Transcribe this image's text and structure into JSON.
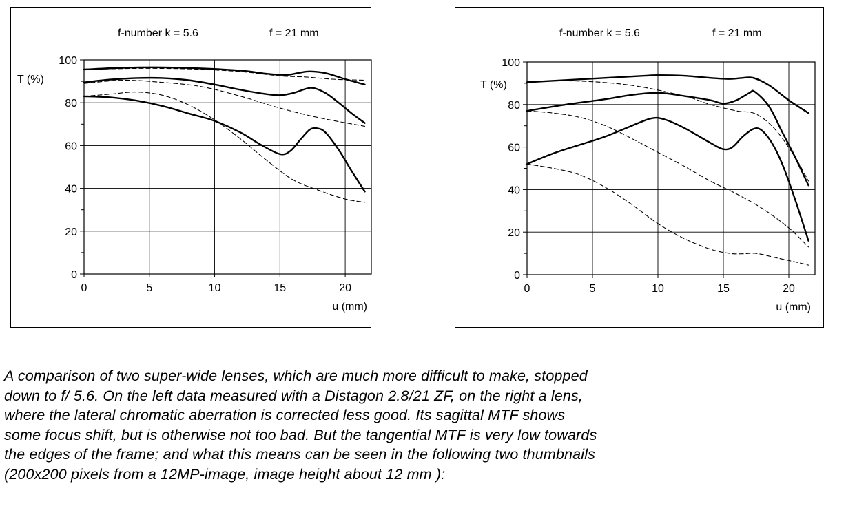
{
  "chart_data": [
    {
      "type": "line",
      "title_fnumber": "f-number  k = 5.6",
      "title_focal": "f = 21 mm",
      "ylabel": "T (%)",
      "xlabel": "u (mm)",
      "xlim": [
        0,
        22
      ],
      "ylim": [
        0,
        100
      ],
      "xticks": [
        0,
        5,
        10,
        15,
        20
      ],
      "yticks": [
        0,
        20,
        40,
        60,
        80,
        100
      ],
      "tick_labels_x": [
        "0",
        "5",
        "10",
        "15",
        "20"
      ],
      "tick_labels_y": [
        "0",
        "20",
        "40",
        "60",
        "80",
        "100"
      ],
      "grid": true,
      "series": [
        {
          "name": "solid-top",
          "style": "solid",
          "points": [
            [
              0,
              95.5
            ],
            [
              3,
              96.3
            ],
            [
              6,
              96.5
            ],
            [
              9,
              96
            ],
            [
              12,
              95
            ],
            [
              14,
              93.5
            ],
            [
              15.5,
              93
            ],
            [
              16.5,
              94
            ],
            [
              17.3,
              94.6
            ],
            [
              18.5,
              93.8
            ],
            [
              20,
              91
            ],
            [
              21.5,
              88.5
            ]
          ]
        },
        {
          "name": "dashed-top",
          "style": "dashed",
          "points": [
            [
              0,
              95.5
            ],
            [
              4,
              96
            ],
            [
              8,
              95.8
            ],
            [
              12,
              94.5
            ],
            [
              15,
              92.5
            ],
            [
              17,
              92
            ],
            [
              19,
              91
            ],
            [
              21.5,
              90.5
            ]
          ]
        },
        {
          "name": "solid-mid",
          "style": "solid",
          "points": [
            [
              0,
              89.5
            ],
            [
              2,
              90.8
            ],
            [
              4,
              91.5
            ],
            [
              6,
              91.5
            ],
            [
              8,
              90.5
            ],
            [
              10,
              88.5
            ],
            [
              12,
              86
            ],
            [
              14,
              84
            ],
            [
              15,
              83.5
            ],
            [
              16,
              84.5
            ],
            [
              17,
              86.5
            ],
            [
              17.6,
              86.8
            ],
            [
              18.5,
              84.5
            ],
            [
              19.5,
              80
            ],
            [
              20.5,
              75
            ],
            [
              21.5,
              70.5
            ]
          ]
        },
        {
          "name": "dashed-mid",
          "style": "dashed",
          "points": [
            [
              0,
              83
            ],
            [
              2,
              84
            ],
            [
              4,
              85
            ],
            [
              6,
              83.5
            ],
            [
              8,
              79
            ],
            [
              10,
              72
            ],
            [
              12,
              63
            ],
            [
              14,
              53
            ],
            [
              16,
              44
            ],
            [
              18,
              39
            ],
            [
              20,
              35
            ],
            [
              21.5,
              33.5
            ]
          ]
        },
        {
          "name": "solid-low",
          "style": "solid",
          "points": [
            [
              0,
              83
            ],
            [
              2,
              82.5
            ],
            [
              4,
              81
            ],
            [
              6,
              78.5
            ],
            [
              8,
              75
            ],
            [
              10,
              71.5
            ],
            [
              12,
              66
            ],
            [
              13.5,
              60.5
            ],
            [
              15,
              56
            ],
            [
              15.8,
              57.5
            ],
            [
              16.6,
              63
            ],
            [
              17.3,
              67.5
            ],
            [
              17.9,
              68
            ],
            [
              18.5,
              66
            ],
            [
              19.5,
              58
            ],
            [
              20.5,
              48
            ],
            [
              21.5,
              38.5
            ]
          ]
        },
        {
          "name": "dashed-low",
          "style": "dashed",
          "points": [
            [
              0,
              89
            ],
            [
              3,
              90.5
            ],
            [
              6,
              89.5
            ],
            [
              9,
              87.5
            ],
            [
              12,
              83
            ],
            [
              15,
              77.5
            ],
            [
              18,
              73
            ],
            [
              21.5,
              69
            ]
          ]
        }
      ]
    },
    {
      "type": "line",
      "title_fnumber": "f-number  k = 5.6",
      "title_focal": "f = 21 mm",
      "ylabel": "T (%)",
      "xlabel": "u (mm)",
      "xlim": [
        0,
        22
      ],
      "ylim": [
        0,
        100
      ],
      "xticks": [
        0,
        5,
        10,
        15,
        20
      ],
      "yticks": [
        0,
        20,
        40,
        60,
        80,
        100
      ],
      "tick_labels_x": [
        "0",
        "5",
        "10",
        "15",
        "20"
      ],
      "tick_labels_y": [
        "0",
        "20",
        "40",
        "60",
        "80",
        "100"
      ],
      "grid": true,
      "series": [
        {
          "name": "solid-top",
          "style": "solid",
          "points": [
            [
              0,
              90.5
            ],
            [
              3,
              91.5
            ],
            [
              6,
              92.5
            ],
            [
              9,
              93.5
            ],
            [
              10,
              93.8
            ],
            [
              12,
              93.5
            ],
            [
              14,
              92.5
            ],
            [
              15.5,
              92
            ],
            [
              16.5,
              92.5
            ],
            [
              17.3,
              92.5
            ],
            [
              18.5,
              89
            ],
            [
              20,
              82
            ],
            [
              21.5,
              76
            ]
          ]
        },
        {
          "name": "solid-mid",
          "style": "solid",
          "points": [
            [
              0,
              77
            ],
            [
              3,
              80
            ],
            [
              6,
              82.5
            ],
            [
              8,
              84.5
            ],
            [
              10,
              85.5
            ],
            [
              12,
              84
            ],
            [
              14,
              82
            ],
            [
              15,
              80.5
            ],
            [
              16,
              82
            ],
            [
              17,
              85.5
            ],
            [
              17.4,
              86
            ],
            [
              18.5,
              79
            ],
            [
              19.5,
              67
            ],
            [
              20.5,
              55
            ],
            [
              21.5,
              42
            ]
          ]
        },
        {
          "name": "solid-low",
          "style": "solid",
          "points": [
            [
              0,
              52
            ],
            [
              2,
              57
            ],
            [
              4,
              61
            ],
            [
              6,
              65
            ],
            [
              8,
              70
            ],
            [
              9.5,
              73.5
            ],
            [
              10.5,
              73
            ],
            [
              12,
              69
            ],
            [
              14,
              62
            ],
            [
              15,
              59
            ],
            [
              15.7,
              60
            ],
            [
              16.5,
              65
            ],
            [
              17.3,
              68.5
            ],
            [
              17.9,
              68
            ],
            [
              18.7,
              62
            ],
            [
              19.5,
              52
            ],
            [
              20.5,
              35
            ],
            [
              21.5,
              16
            ]
          ]
        },
        {
          "name": "dashed-top",
          "style": "dashed",
          "points": [
            [
              0,
              91
            ],
            [
              4,
              91
            ],
            [
              8,
              89
            ],
            [
              12,
              84
            ],
            [
              14,
              80
            ],
            [
              16,
              77
            ],
            [
              17.5,
              75.5
            ],
            [
              19,
              68
            ],
            [
              20.5,
              55
            ],
            [
              21.5,
              44
            ]
          ]
        },
        {
          "name": "dashed-mid",
          "style": "dashed",
          "points": [
            [
              0,
              77
            ],
            [
              2,
              76
            ],
            [
              4,
              74
            ],
            [
              6,
              70
            ],
            [
              8,
              64
            ],
            [
              10,
              57.5
            ],
            [
              12,
              51
            ],
            [
              14,
              44
            ],
            [
              16,
              38
            ],
            [
              18,
              31
            ],
            [
              20,
              22
            ],
            [
              21.5,
              13
            ]
          ]
        },
        {
          "name": "dashed-low",
          "style": "dashed",
          "points": [
            [
              0,
              52
            ],
            [
              2,
              50
            ],
            [
              4,
              47
            ],
            [
              6,
              41
            ],
            [
              8,
              33
            ],
            [
              10,
              24
            ],
            [
              12,
              17
            ],
            [
              14,
              12
            ],
            [
              15.5,
              10
            ],
            [
              16.5,
              9.8
            ],
            [
              17.5,
              10
            ],
            [
              19,
              8
            ],
            [
              20.5,
              6
            ],
            [
              21.5,
              4.5
            ]
          ]
        }
      ]
    }
  ],
  "caption": {
    "line1": "A comparison of two super-wide lenses, which are much more difficult to make, stopped",
    "line2": "down to f/ 5.6. On the left data measured with a Distagon 2.8/21 ZF, on the right a lens,",
    "line3": "where the lateral chromatic aberration is corrected less good. Its sagittal MTF shows",
    "line4": "some focus shift, but is otherwise not too bad. But the tangential MTF is very low towards",
    "line5": "the edges of the frame; and what this means can be seen in the following two thumbnails",
    "line6": "(200x200 pixels from a 12MP-image, image height about 12 mm ):"
  }
}
